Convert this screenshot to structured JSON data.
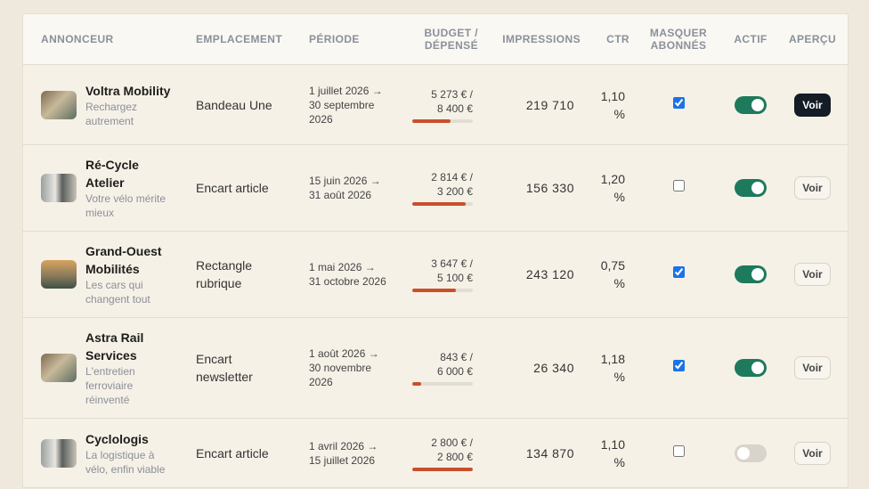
{
  "header": [
    "ANNONCEUR",
    "EMPLACEMENT",
    "PÉRIODE",
    "BUDGET / DÉPENSÉ",
    "IMPRESSIONS",
    "CTR",
    "MASQUER ABONNÉS",
    "ACTIF",
    "APERÇU"
  ],
  "rows": [
    {
      "name": "Voltra Mobility",
      "tagline": "Rechargez autrement",
      "placement": "Bandeau Une",
      "period": "1 juillet 2026 → 30 septembre 2026",
      "spent": {
        "value": 5273,
        "label": "5 273 € /"
      },
      "budget": {
        "value": 8400,
        "label": "8 400 €"
      },
      "impressions": "219 710",
      "ctr": "1,10 %",
      "hide_subscribers": true,
      "active": true,
      "preview": "Voir"
    },
    {
      "name": "Ré-Cycle Atelier",
      "tagline": "Votre vélo mérite mieux",
      "placement": "Encart article",
      "period": "15 juin 2026 → 31 août 2026",
      "spent": {
        "value": 2814,
        "label": "2 814 € /"
      },
      "budget": {
        "value": 3200,
        "label": "3 200 €"
      },
      "impressions": "156 330",
      "ctr": "1,20 %",
      "hide_subscribers": false,
      "active": true,
      "preview": "Voir"
    },
    {
      "name": "Grand-Ouest Mobilités",
      "tagline": "Les cars qui changent tout",
      "placement": "Rectangle rubrique",
      "period": "1 mai 2026 → 31 octobre 2026",
      "spent": {
        "value": 3647,
        "label": "3 647 € /"
      },
      "budget": {
        "value": 5100,
        "label": "5 100 €"
      },
      "impressions": "243 120",
      "ctr": "0,75 %",
      "hide_subscribers": true,
      "active": true,
      "preview": "Voir"
    },
    {
      "name": "Astra Rail Services",
      "tagline": "L'entretien ferroviaire réinventé",
      "placement": "Encart newsletter",
      "period": "1 août 2026 → 30 novembre 2026",
      "spent": {
        "value": 843,
        "label": "843 € /"
      },
      "budget": {
        "value": 6000,
        "label": "6 000 €"
      },
      "impressions": "26 340",
      "ctr": "1,18 %",
      "hide_subscribers": true,
      "active": true,
      "preview": "Voir"
    },
    {
      "name": "Cyclologis",
      "tagline": "La logistique à vélo, enfin viable",
      "placement": "Encart article",
      "period": "1 avril 2026 → 15 juillet 2026",
      "spent": {
        "value": 2800,
        "label": "2 800 € /"
      },
      "budget": {
        "value": 2800,
        "label": "2 800 €"
      },
      "impressions": "134 870",
      "ctr": "1,10 %",
      "hide_subscribers": false,
      "active": false,
      "preview": "Voir"
    }
  ]
}
